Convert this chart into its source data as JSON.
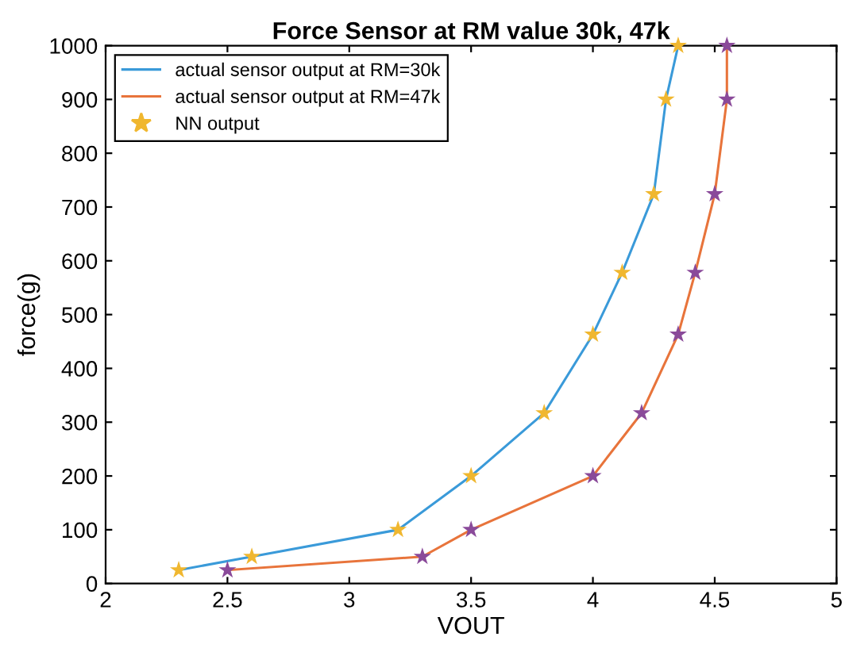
{
  "chart_data": {
    "type": "line",
    "title": "Force Sensor at RM value 30k, 47k",
    "xlabel": "VOUT",
    "ylabel": "force(g)",
    "xlim": [
      2,
      5
    ],
    "ylim": [
      0,
      1000
    ],
    "xticks": [
      2,
      2.5,
      3,
      3.5,
      4,
      4.5,
      5
    ],
    "yticks": [
      0,
      100,
      200,
      300,
      400,
      500,
      600,
      700,
      800,
      900,
      1000
    ],
    "grid": false,
    "legend": "top left",
    "series": [
      {
        "name": "actual sensor output at RM=30k",
        "color": "#3a9ad9",
        "marker": "none",
        "x": [
          2.3,
          2.6,
          3.2,
          3.5,
          3.8,
          4.0,
          4.12,
          4.25,
          4.3,
          4.35
        ],
        "values": [
          25,
          50,
          100,
          200,
          317,
          463,
          578,
          724,
          900,
          1000
        ]
      },
      {
        "name": "actual sensor output at RM=47k",
        "color": "#e8743b",
        "marker": "none",
        "x": [
          2.5,
          3.3,
          3.5,
          4.0,
          4.2,
          4.35,
          4.42,
          4.5,
          4.55,
          4.55
        ],
        "values": [
          25,
          50,
          100,
          200,
          317,
          463,
          578,
          724,
          900,
          1000
        ]
      },
      {
        "name": "NN output",
        "type": "scatter",
        "marker": "star",
        "color": "#f0b72f",
        "x": [
          2.3,
          2.6,
          3.2,
          3.5,
          3.8,
          4.0,
          4.12,
          4.25,
          4.3,
          4.35,
          2.5,
          3.3,
          3.5,
          4.0,
          4.2,
          4.35,
          4.42,
          4.5,
          4.55,
          4.55
        ],
        "values": [
          25,
          50,
          100,
          200,
          317,
          463,
          578,
          724,
          900,
          1000,
          25,
          50,
          100,
          200,
          317,
          463,
          578,
          724,
          900,
          1000
        ],
        "colors": [
          "#f0b72f",
          "#f0b72f",
          "#f0b72f",
          "#f0b72f",
          "#f0b72f",
          "#f0b72f",
          "#f0b72f",
          "#f0b72f",
          "#f0b72f",
          "#f0b72f",
          "#8a4a9a",
          "#8a4a9a",
          "#8a4a9a",
          "#8a4a9a",
          "#8a4a9a",
          "#8a4a9a",
          "#8a4a9a",
          "#8a4a9a",
          "#8a4a9a",
          "#8a4a9a"
        ]
      }
    ]
  }
}
